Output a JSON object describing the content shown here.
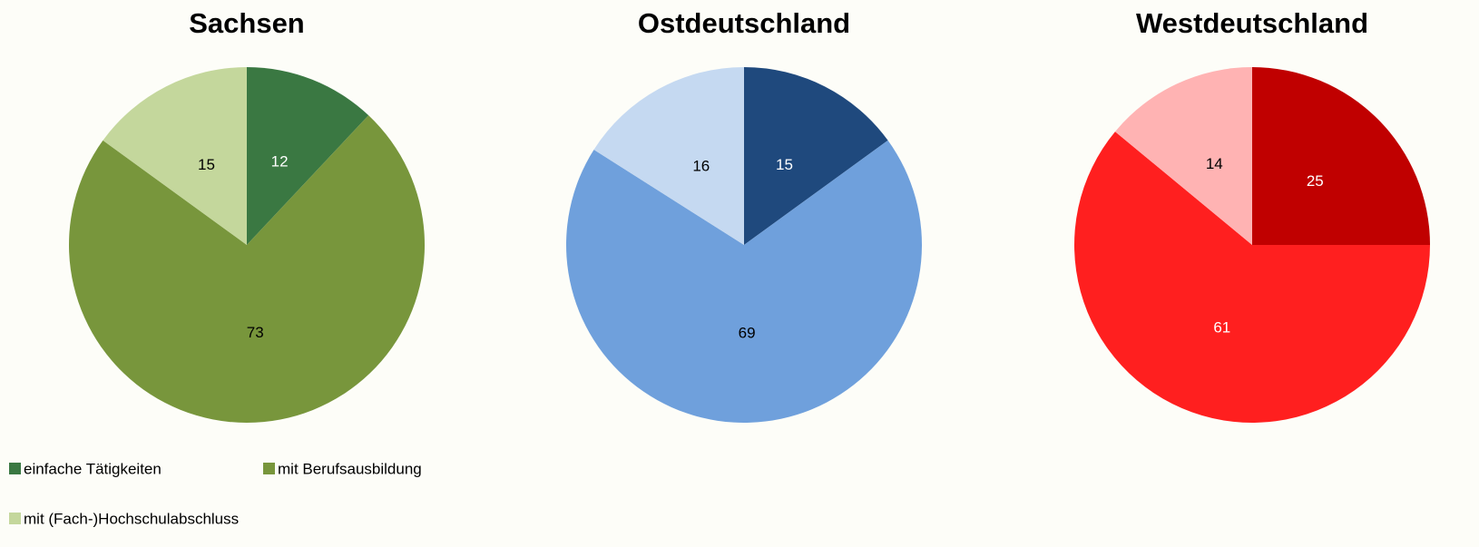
{
  "chart_data": [
    {
      "type": "pie",
      "title": "Sachsen",
      "categories": [
        "einfache Tätigkeiten",
        "mit Berufsausbildung",
        "mit (Fach-)Hochschulabschluss"
      ],
      "values": [
        12,
        73,
        15
      ],
      "colors": [
        "#3a7842",
        "#78963c",
        "#c4d79c"
      ]
    },
    {
      "type": "pie",
      "title": "Ostdeutschland",
      "values": [
        15,
        69,
        16
      ],
      "colors": [
        "#1f497d",
        "#6fa0dc",
        "#c5d9f1"
      ]
    },
    {
      "type": "pie",
      "title": "Westdeutschland",
      "values": [
        25,
        61,
        14
      ],
      "colors": [
        "#c00000",
        "#ff1f1f",
        "#ffb3b3"
      ]
    }
  ]
}
